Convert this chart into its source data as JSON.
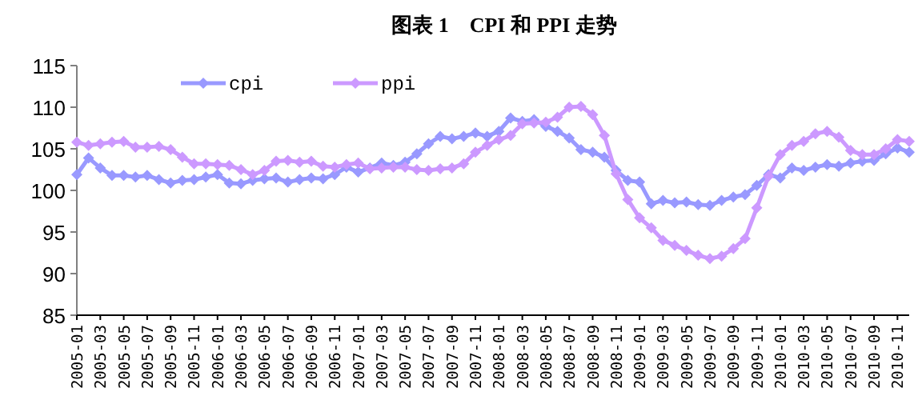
{
  "chart_data": {
    "type": "line",
    "title": "图表 1　CPI 和 PPI 走势",
    "x": [
      "2005-01",
      "2005-02",
      "2005-03",
      "2005-04",
      "2005-05",
      "2005-06",
      "2005-07",
      "2005-08",
      "2005-09",
      "2005-10",
      "2005-11",
      "2005-12",
      "2006-01",
      "2006-02",
      "2006-03",
      "2006-04",
      "2006-05",
      "2006-06",
      "2006-07",
      "2006-08",
      "2006-09",
      "2006-10",
      "2006-11",
      "2006-12",
      "2007-01",
      "2007-02",
      "2007-03",
      "2007-04",
      "2007-05",
      "2007-06",
      "2007-07",
      "2007-08",
      "2007-09",
      "2007-10",
      "2007-11",
      "2007-12",
      "2008-01",
      "2008-02",
      "2008-03",
      "2008-04",
      "2008-05",
      "2008-06",
      "2008-07",
      "2008-08",
      "2008-09",
      "2008-10",
      "2008-11",
      "2008-12",
      "2009-01",
      "2009-02",
      "2009-03",
      "2009-04",
      "2009-05",
      "2009-06",
      "2009-07",
      "2009-08",
      "2009-09",
      "2009-10",
      "2009-11",
      "2009-12",
      "2010-01",
      "2010-02",
      "2010-03",
      "2010-04",
      "2010-05",
      "2010-06",
      "2010-07",
      "2010-08",
      "2010-09",
      "2010-10",
      "2010-11",
      "2010-12"
    ],
    "series": [
      {
        "name": "cpi",
        "color": "#9999ff",
        "values": [
          101.9,
          103.9,
          102.7,
          101.8,
          101.8,
          101.6,
          101.8,
          101.3,
          100.9,
          101.2,
          101.3,
          101.6,
          101.9,
          100.9,
          100.8,
          101.2,
          101.4,
          101.5,
          101.0,
          101.3,
          101.5,
          101.4,
          101.9,
          102.8,
          102.2,
          102.7,
          103.3,
          103.0,
          103.4,
          104.4,
          105.6,
          106.5,
          106.2,
          106.5,
          106.9,
          106.5,
          107.1,
          108.7,
          108.3,
          108.5,
          107.7,
          107.1,
          106.3,
          104.9,
          104.6,
          104.0,
          102.4,
          101.2,
          101.0,
          98.4,
          98.8,
          98.5,
          98.6,
          98.3,
          98.2,
          98.8,
          99.2,
          99.5,
          100.6,
          101.9,
          101.5,
          102.7,
          102.4,
          102.8,
          103.1,
          102.9,
          103.3,
          103.5,
          103.6,
          104.4,
          105.1,
          104.6
        ]
      },
      {
        "name": "ppi",
        "color": "#cc99ff",
        "values": [
          105.8,
          105.4,
          105.6,
          105.8,
          105.9,
          105.2,
          105.2,
          105.3,
          104.9,
          104.0,
          103.2,
          103.2,
          103.1,
          103.0,
          102.5,
          101.9,
          102.4,
          103.5,
          103.6,
          103.4,
          103.5,
          102.9,
          102.8,
          103.1,
          103.3,
          102.6,
          102.7,
          102.8,
          102.8,
          102.5,
          102.4,
          102.6,
          102.7,
          103.2,
          104.6,
          105.4,
          106.1,
          106.6,
          108.0,
          108.1,
          108.2,
          108.8,
          110.0,
          110.1,
          109.1,
          106.6,
          102.0,
          98.9,
          96.7,
          95.5,
          94.0,
          93.4,
          92.8,
          92.2,
          91.8,
          92.1,
          93.0,
          94.2,
          97.9,
          101.7,
          104.3,
          105.4,
          105.9,
          106.8,
          107.1,
          106.4,
          104.8,
          104.3,
          104.3,
          105.0,
          106.1,
          105.9
        ]
      }
    ],
    "xlim": [
      "2005-01",
      "2010-12"
    ],
    "xticks": [
      "2005-01",
      "2005-03",
      "2005-05",
      "2005-07",
      "2005-09",
      "2005-11",
      "2006-01",
      "2006-03",
      "2006-05",
      "2006-07",
      "2006-09",
      "2006-11",
      "2007-01",
      "2007-03",
      "2007-05",
      "2007-07",
      "2007-09",
      "2007-11",
      "2008-01",
      "2008-03",
      "2008-05",
      "2008-07",
      "2008-09",
      "2008-11",
      "2009-01",
      "2009-03",
      "2009-05",
      "2009-07",
      "2009-09",
      "2009-11",
      "2010-01",
      "2010-03",
      "2010-05",
      "2010-07",
      "2010-09",
      "2010-11"
    ],
    "ylim": [
      85,
      115
    ],
    "yticks": [
      85,
      90,
      95,
      100,
      105,
      110,
      115
    ],
    "grid": false,
    "legend": "top",
    "marker": "diamond",
    "line_style": "solid"
  }
}
